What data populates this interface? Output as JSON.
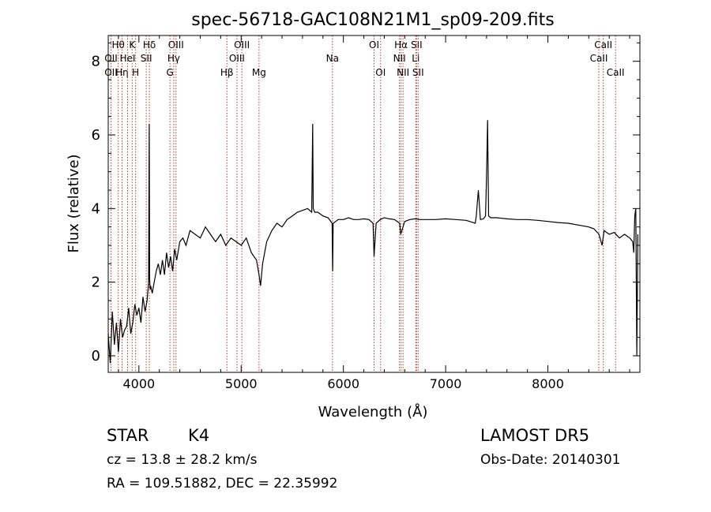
{
  "chart_data": {
    "type": "line",
    "title": "spec-56718-GAC108N21M1_sp09-209.fits",
    "xlabel": "Wavelength (Å)",
    "ylabel": "Flux (relative)",
    "xlim": [
      3700,
      8900
    ],
    "ylim": [
      -0.45,
      8.7
    ],
    "x_ticks": [
      4000,
      5000,
      6000,
      7000,
      8000
    ],
    "y_ticks": [
      0,
      2,
      4,
      6,
      8
    ],
    "grid": false,
    "line_color": "#000000",
    "marker_line_color": "#c0392b",
    "series": [
      {
        "x": [
          3700,
          3720,
          3740,
          3760,
          3780,
          3800,
          3820,
          3840,
          3860,
          3880,
          3900,
          3920,
          3940,
          3960,
          3980,
          4000,
          4020,
          4040,
          4060,
          4080,
          4095,
          4101,
          4105,
          4110,
          4115,
          4130,
          4150,
          4170,
          4190,
          4210,
          4230,
          4250,
          4270,
          4290,
          4310,
          4330,
          4350,
          4370,
          4400,
          4430,
          4460,
          4500,
          4550,
          4600,
          4650,
          4700,
          4750,
          4800,
          4850,
          4900,
          4950,
          5000,
          5050,
          5100,
          5150,
          5175,
          5190,
          5210,
          5250,
          5300,
          5350,
          5400,
          5450,
          5500,
          5550,
          5600,
          5650,
          5690,
          5700,
          5705,
          5720,
          5750,
          5800,
          5850,
          5890,
          5895,
          5900,
          5950,
          6000,
          6050,
          6100,
          6150,
          6200,
          6250,
          6290,
          6300,
          6320,
          6360,
          6400,
          6450,
          6500,
          6550,
          6560,
          6600,
          6650,
          6700,
          6750,
          6800,
          6900,
          7000,
          7100,
          7200,
          7290,
          7300,
          7320,
          7340,
          7370,
          7390,
          7400,
          7410,
          7420,
          7440,
          7500,
          7600,
          7700,
          7800,
          7900,
          8000,
          8100,
          8200,
          8300,
          8400,
          8450,
          8500,
          8530,
          8550,
          8600,
          8650,
          8700,
          8750,
          8800,
          8830,
          8840,
          8850,
          8860,
          8870,
          8880
        ],
        "y": [
          0.6,
          -0.2,
          1.2,
          0.3,
          0.9,
          0.1,
          1.0,
          0.5,
          0.7,
          0.8,
          1.3,
          0.6,
          0.9,
          1.4,
          1.1,
          1.3,
          0.9,
          1.6,
          1.2,
          1.5,
          2.0,
          6.3,
          2.1,
          1.8,
          1.9,
          1.7,
          2.0,
          2.3,
          2.5,
          2.2,
          2.6,
          2.2,
          2.8,
          2.4,
          2.7,
          2.3,
          2.9,
          2.6,
          3.1,
          3.2,
          3.0,
          3.4,
          3.3,
          3.2,
          3.5,
          3.3,
          3.1,
          3.3,
          3.0,
          3.2,
          3.1,
          3.0,
          3.2,
          2.8,
          2.6,
          2.2,
          1.9,
          2.5,
          3.1,
          3.4,
          3.6,
          3.5,
          3.7,
          3.8,
          3.9,
          3.95,
          4.0,
          3.9,
          6.3,
          4.0,
          3.9,
          3.9,
          3.8,
          3.75,
          3.6,
          2.3,
          3.6,
          3.7,
          3.7,
          3.75,
          3.7,
          3.7,
          3.72,
          3.7,
          3.6,
          2.7,
          3.6,
          3.7,
          3.75,
          3.72,
          3.7,
          3.6,
          3.3,
          3.65,
          3.7,
          3.72,
          3.7,
          3.7,
          3.7,
          3.72,
          3.7,
          3.68,
          3.6,
          3.8,
          4.5,
          3.7,
          3.72,
          3.8,
          4.9,
          6.4,
          3.8,
          3.75,
          3.75,
          3.72,
          3.7,
          3.7,
          3.68,
          3.65,
          3.62,
          3.6,
          3.55,
          3.5,
          3.45,
          3.3,
          3.0,
          3.4,
          3.3,
          3.35,
          3.2,
          3.3,
          3.2,
          3.1,
          2.8,
          3.8,
          4.0,
          0.0,
          3.3
        ]
      }
    ],
    "line_annotations": [
      {
        "label": "Hθ",
        "row": 1,
        "x": 3798
      },
      {
        "label": "OII",
        "row": 2,
        "x": 3727
      },
      {
        "label": "OII",
        "row": 3,
        "x": 3727
      },
      {
        "label": "Hη",
        "row": 3,
        "x": 3835
      },
      {
        "label": "HeI",
        "row": 2,
        "x": 3889
      },
      {
        "label": "K",
        "row": 1,
        "x": 3934
      },
      {
        "label": "H",
        "row": 3,
        "x": 3968
      },
      {
        "label": "SII",
        "row": 2,
        "x": 4072
      },
      {
        "label": "Hδ",
        "row": 1,
        "x": 4102
      },
      {
        "label": "OIII",
        "row": 1,
        "x": 4363
      },
      {
        "label": "Hγ",
        "row": 2,
        "x": 4341
      },
      {
        "label": "G",
        "row": 3,
        "x": 4304
      },
      {
        "label": "Hβ",
        "row": 3,
        "x": 4861
      },
      {
        "label": "OIII",
        "row": 1,
        "x": 5007
      },
      {
        "label": "OIII",
        "row": 2,
        "x": 4959
      },
      {
        "label": "Mg",
        "row": 3,
        "x": 5175
      },
      {
        "label": "Na",
        "row": 2,
        "x": 5893
      },
      {
        "label": "OI",
        "row": 1,
        "x": 6300
      },
      {
        "label": "OI",
        "row": 3,
        "x": 6364
      },
      {
        "label": "Hα",
        "row": 1,
        "x": 6563
      },
      {
        "label": "NII",
        "row": 2,
        "x": 6548
      },
      {
        "label": "NII",
        "row": 3,
        "x": 6583
      },
      {
        "label": "SII",
        "row": 1,
        "x": 6716
      },
      {
        "label": "Li",
        "row": 2,
        "x": 6708
      },
      {
        "label": "SII",
        "row": 3,
        "x": 6731
      },
      {
        "label": "CaII",
        "row": 1,
        "x": 8542
      },
      {
        "label": "CaII",
        "row": 2,
        "x": 8498
      },
      {
        "label": "CaII",
        "row": 3,
        "x": 8662
      }
    ]
  },
  "info": {
    "class_label": "STAR",
    "subclass_label": "K4",
    "cz_text": "cz = 13.8 ± 28.2 km/s",
    "radec_text": "RA = 109.51882, DEC =  22.35992",
    "survey_label": "LAMOST DR5",
    "obs_date_text": "Obs-Date: 20140301"
  }
}
